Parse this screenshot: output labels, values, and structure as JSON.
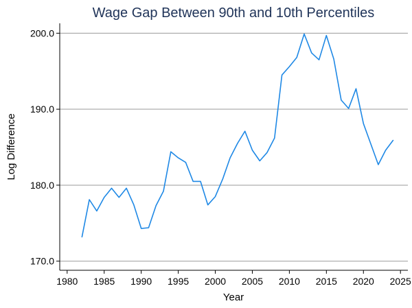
{
  "chart_data": {
    "type": "line",
    "title": "Wage Gap Between 90th and 10th Percentiles",
    "xlabel": "Year",
    "ylabel": "Log Difference",
    "xlim": [
      1979,
      2026
    ],
    "ylim": [
      168.8,
      201.3
    ],
    "x_ticks": [
      1980,
      1985,
      1990,
      1995,
      2000,
      2005,
      2010,
      2015,
      2020,
      2025
    ],
    "y_ticks": [
      170.0,
      180.0,
      190.0,
      200.0
    ],
    "y_tick_labels": [
      "170.0",
      "180.0",
      "190.0",
      "200.0"
    ],
    "grid": "horizontal",
    "series": [
      {
        "color": "#1e88e5",
        "x": [
          1982,
          1983,
          1984,
          1985,
          1986,
          1987,
          1988,
          1989,
          1990,
          1991,
          1992,
          1993,
          1994,
          1995,
          1996,
          1997,
          1998,
          1999,
          2000,
          2001,
          2002,
          2003,
          2004,
          2005,
          2006,
          2007,
          2008,
          2009,
          2010,
          2011,
          2012,
          2013,
          2014,
          2015,
          2016,
          2017,
          2018,
          2019,
          2020,
          2021,
          2022,
          2023,
          2024
        ],
        "y": [
          173.2,
          178.1,
          176.6,
          178.4,
          179.6,
          178.4,
          179.6,
          177.4,
          174.3,
          174.4,
          177.3,
          179.2,
          184.4,
          183.6,
          183.0,
          180.5,
          180.5,
          177.4,
          178.5,
          180.8,
          183.6,
          185.5,
          187.1,
          184.6,
          183.2,
          184.3,
          186.2,
          194.5,
          195.6,
          196.8,
          199.9,
          197.4,
          196.5,
          199.7,
          196.6,
          191.2,
          190.1,
          192.7,
          188.1,
          185.4,
          182.7,
          184.6,
          185.9
        ]
      }
    ]
  }
}
